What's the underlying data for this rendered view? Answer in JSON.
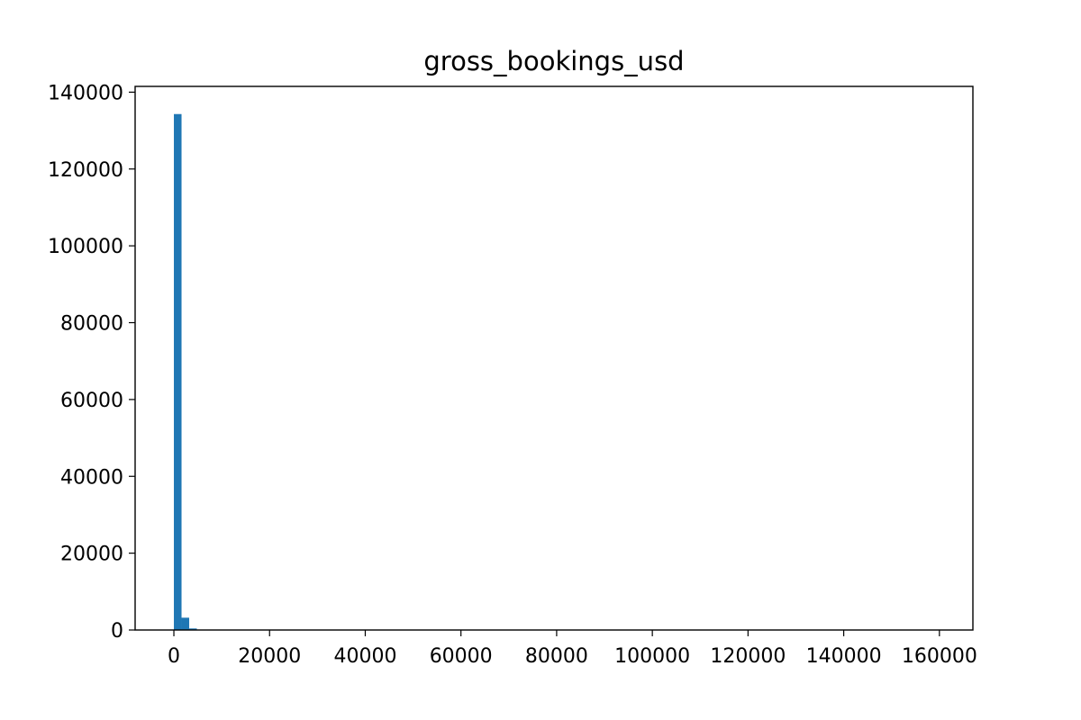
{
  "chart_data": {
    "type": "bar",
    "title": "gross_bookings_usd",
    "xlabel": "",
    "ylabel": "",
    "xlim": [
      -8100,
      167000
    ],
    "ylim": [
      0,
      141500
    ],
    "x_ticks": [
      0,
      20000,
      40000,
      60000,
      80000,
      100000,
      120000,
      140000,
      160000
    ],
    "x_tick_labels": [
      "0",
      "20000",
      "40000",
      "60000",
      "80000",
      "100000",
      "120000",
      "140000",
      "160000"
    ],
    "y_ticks": [
      0,
      20000,
      40000,
      60000,
      80000,
      100000,
      120000,
      140000
    ],
    "y_tick_labels": [
      "0",
      "20000",
      "40000",
      "60000",
      "80000",
      "100000",
      "120000",
      "140000"
    ],
    "bin_width": 1600,
    "bins": [
      {
        "x0": 0,
        "x1": 1600,
        "count": 134300
      },
      {
        "x0": 1600,
        "x1": 3200,
        "count": 3200
      },
      {
        "x0": 3200,
        "x1": 4800,
        "count": 400
      },
      {
        "x0": 4800,
        "x1": 6400,
        "count": 100
      }
    ],
    "bar_color": "#1f77b4",
    "grid": false,
    "legend": "none"
  }
}
